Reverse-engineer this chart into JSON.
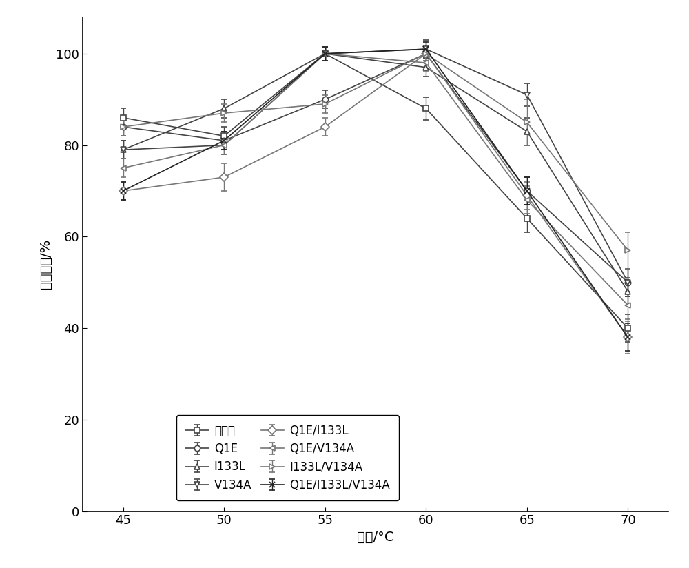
{
  "x": [
    45,
    50,
    55,
    60,
    65,
    70
  ],
  "series": {
    "野生酶": {
      "y": [
        86,
        82,
        100,
        88,
        64,
        40
      ],
      "yerr": [
        2,
        2,
        1.5,
        2.5,
        3,
        3
      ],
      "marker": "s",
      "color": "#444444",
      "linestyle": "-"
    },
    "Q1E": {
      "y": [
        84,
        81,
        90,
        100,
        70,
        50
      ],
      "yerr": [
        2,
        2,
        2,
        1.5,
        3,
        3
      ],
      "marker": "o",
      "color": "#444444",
      "linestyle": "-"
    },
    "I133L": {
      "y": [
        79,
        88,
        100,
        97,
        83,
        48
      ],
      "yerr": [
        2,
        2,
        1.5,
        2,
        3,
        3
      ],
      "marker": "^",
      "color": "#444444",
      "linestyle": "-"
    },
    "V134A": {
      "y": [
        79,
        80,
        100,
        101,
        91,
        50
      ],
      "yerr": [
        2,
        2,
        1.5,
        2,
        2.5,
        3
      ],
      "marker": "v",
      "color": "#444444",
      "linestyle": "-"
    },
    "Q1E/I133L": {
      "y": [
        70,
        73,
        84,
        100,
        69,
        38
      ],
      "yerr": [
        2,
        3,
        2,
        1.5,
        3,
        3.5
      ],
      "marker": "D",
      "color": "#777777",
      "linestyle": "-"
    },
    "Q1E/V134A": {
      "y": [
        75,
        80,
        100,
        98,
        68,
        45
      ],
      "yerr": [
        2,
        2,
        1.5,
        2,
        3,
        3
      ],
      "marker": "<",
      "color": "#777777",
      "linestyle": "-"
    },
    "I133L/V134A": {
      "y": [
        84,
        87,
        89,
        100,
        85,
        57
      ],
      "yerr": [
        2,
        2,
        2,
        1.5,
        5,
        4
      ],
      "marker": ">",
      "color": "#777777",
      "linestyle": "-"
    },
    "Q1E/I133L/V134A": {
      "y": [
        70,
        81,
        100,
        101,
        70,
        38
      ],
      "yerr": [
        2,
        2,
        1.5,
        1.5,
        3,
        3
      ],
      "marker": "x",
      "color": "#222222",
      "linestyle": "-"
    }
  },
  "xlabel": "温度/°C",
  "ylabel": "相对酶活/%",
  "xlim": [
    43,
    72
  ],
  "ylim": [
    0,
    108
  ],
  "xticks": [
    45,
    50,
    55,
    60,
    65,
    70
  ],
  "yticks": [
    0,
    20,
    40,
    60,
    80,
    100
  ],
  "background_color": "#ffffff",
  "figure_size": [
    10.0,
    8.24
  ]
}
